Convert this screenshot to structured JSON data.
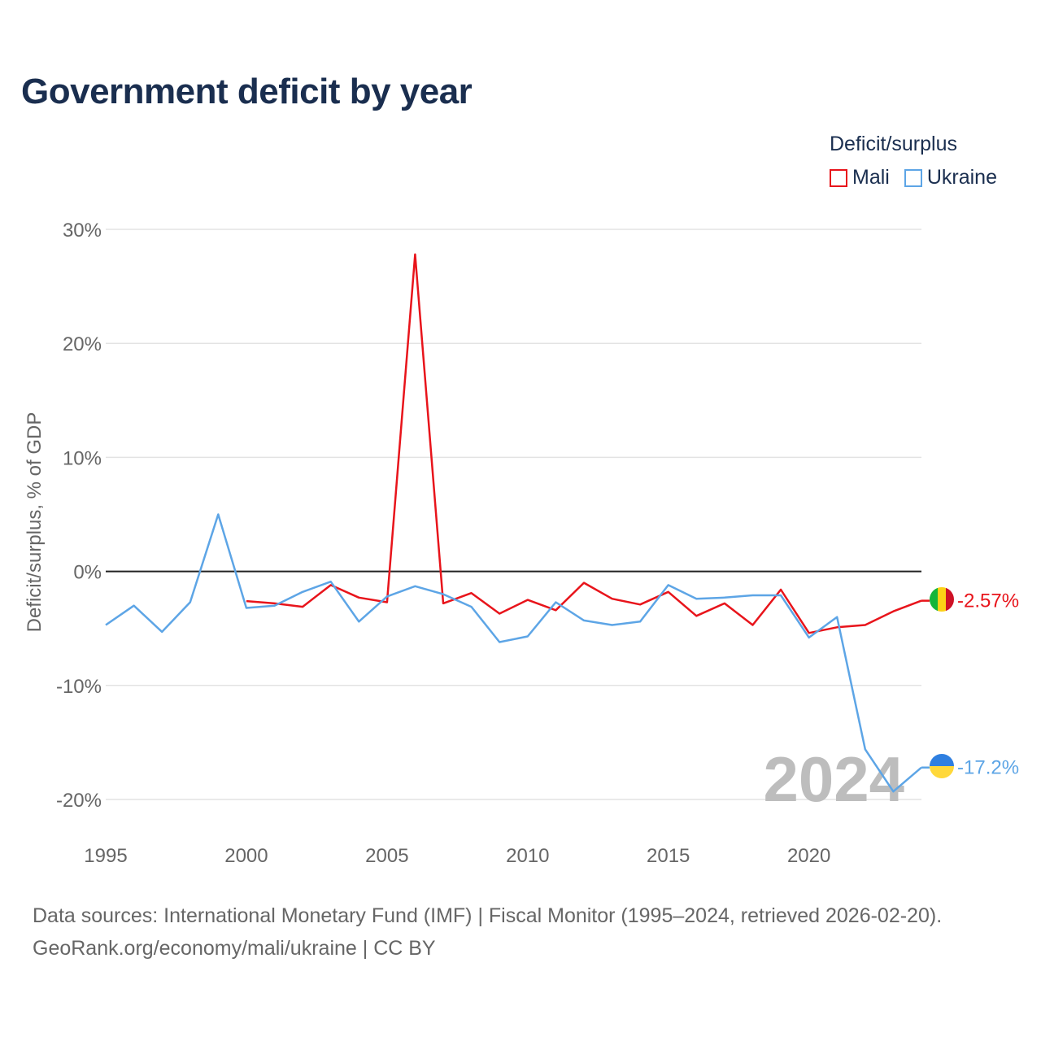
{
  "title": "Government deficit by year",
  "legend": {
    "title": "Deficit/surplus",
    "items": [
      {
        "label": "Mali",
        "color": "#e8141b"
      },
      {
        "label": "Ukraine",
        "color": "#5da5e6"
      }
    ]
  },
  "footer": {
    "line1": "Data sources: International Monetary Fund (IMF) | Fiscal Monitor (1995–2024, retrieved 2026-02-20).",
    "line2": "GeoRank.org/economy/mali/ukraine | CC BY"
  },
  "chart_data": {
    "type": "line",
    "title": "Government deficit by year",
    "ylabel": "Deficit/surplus, % of GDP",
    "xlabel": "",
    "xlim": [
      1995,
      2024
    ],
    "ylim": [
      -22,
      30
    ],
    "yticks": [
      30,
      20,
      10,
      0,
      -10,
      -20
    ],
    "ytick_labels": [
      "30%",
      "20%",
      "10%",
      "0%",
      "-10%",
      "-20%"
    ],
    "xticks": [
      1995,
      2000,
      2005,
      2010,
      2015,
      2020
    ],
    "xtick_labels": [
      "1995",
      "2000",
      "2005",
      "2010",
      "2015",
      "2020"
    ],
    "year_watermark": "2024",
    "grid": true,
    "legend_position": "top-right",
    "series": [
      {
        "name": "Mali",
        "color": "#e8141b",
        "end_label": "-2.57%",
        "x": [
          2000,
          2001,
          2002,
          2003,
          2004,
          2005,
          2006,
          2007,
          2008,
          2009,
          2010,
          2011,
          2012,
          2013,
          2014,
          2015,
          2016,
          2017,
          2018,
          2019,
          2020,
          2021,
          2022,
          2023,
          2024
        ],
        "values": [
          -2.6,
          -2.8,
          -3.1,
          -1.2,
          -2.3,
          -2.7,
          27.8,
          -2.8,
          -1.9,
          -3.7,
          -2.5,
          -3.4,
          -1.0,
          -2.4,
          -2.9,
          -1.8,
          -3.9,
          -2.8,
          -4.7,
          -1.6,
          -5.4,
          -4.9,
          -4.7,
          -3.5,
          -2.57
        ]
      },
      {
        "name": "Ukraine",
        "color": "#5da5e6",
        "end_label": "-17.2%",
        "x": [
          1995,
          1996,
          1997,
          1998,
          1999,
          2000,
          2001,
          2002,
          2003,
          2004,
          2005,
          2006,
          2007,
          2008,
          2009,
          2010,
          2011,
          2012,
          2013,
          2014,
          2015,
          2016,
          2017,
          2018,
          2019,
          2020,
          2021,
          2022,
          2023,
          2024
        ],
        "values": [
          -4.7,
          -3.0,
          -5.3,
          -2.7,
          5.0,
          -3.2,
          -3.0,
          -1.8,
          -0.9,
          -4.4,
          -2.2,
          -1.3,
          -2.0,
          -3.1,
          -6.2,
          -5.7,
          -2.7,
          -4.3,
          -4.7,
          -4.4,
          -1.2,
          -2.4,
          -2.3,
          -2.1,
          -2.1,
          -5.8,
          -4.0,
          -15.6,
          -19.3,
          -17.2
        ]
      }
    ]
  }
}
